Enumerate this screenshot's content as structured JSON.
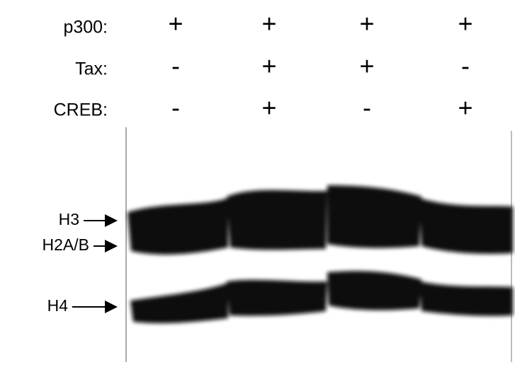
{
  "conditions": [
    {
      "label": "p300:",
      "lanes": [
        "+",
        "+",
        "+",
        "+"
      ]
    },
    {
      "label": "Tax:",
      "lanes": [
        "-",
        "+",
        "+",
        "-"
      ]
    },
    {
      "label": "CREB:",
      "lanes": [
        "-",
        "+",
        "-",
        "+"
      ]
    }
  ],
  "bands": [
    "H3",
    "H2A/B",
    "H4"
  ]
}
